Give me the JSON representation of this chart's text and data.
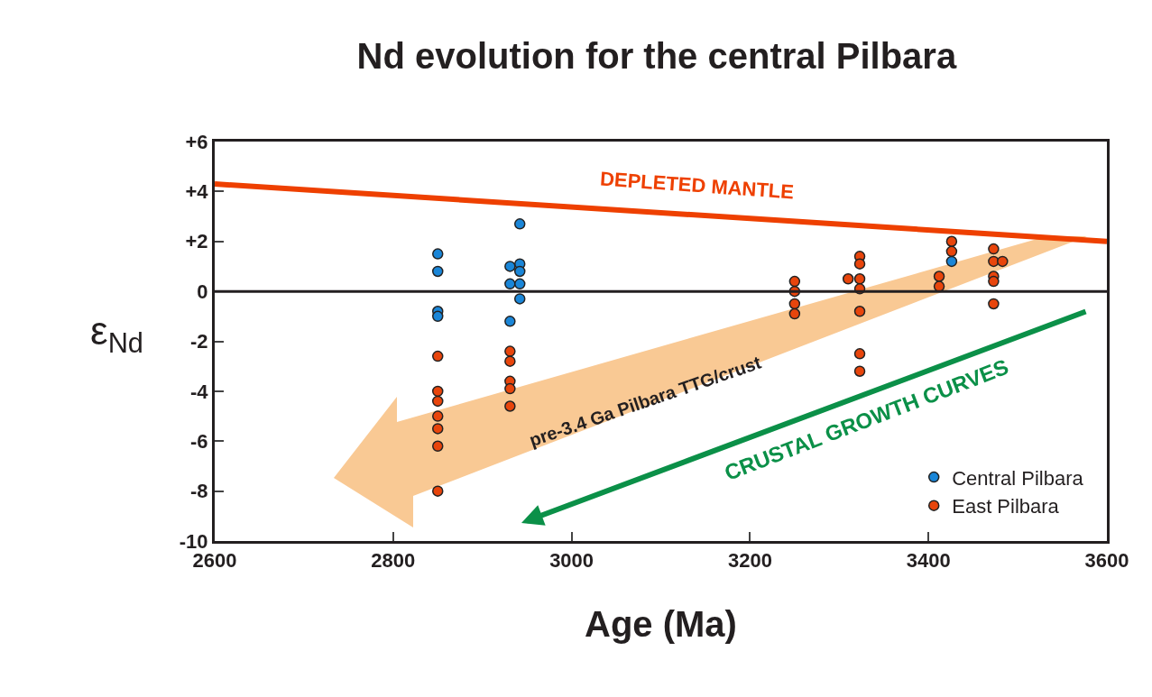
{
  "chart_data": {
    "type": "scatter",
    "title": "Nd evolution for the central Pilbara",
    "xlabel": "Age (Ma)",
    "ylabel": "ε$_{Nd}$",
    "xlim": [
      2600,
      3600
    ],
    "xticks": [
      2600,
      2800,
      3000,
      3200,
      3400,
      3600
    ],
    "ylim": [
      -10,
      6
    ],
    "yticks": [
      {
        "value": 6,
        "label": "+6"
      },
      {
        "value": 4,
        "label": "+4"
      },
      {
        "value": 2,
        "label": "+2"
      },
      0,
      -2,
      -4,
      -6,
      -8,
      -10
    ],
    "grid": false,
    "legend": "bottom right",
    "marker": "circle",
    "ref_lines": [
      {
        "axis": "y",
        "value": 0,
        "color": "#231f20"
      }
    ],
    "annotations": [
      "pre-3.4 Ga Pilbara TTG/crust",
      "CRUSTAL GROWTH CURVES"
    ],
    "series": [
      {
        "name": "Central Pilbara",
        "color": "#1a86d8",
        "x": [
          2850,
          2850,
          2850,
          2850,
          2931,
          2931,
          2931,
          2942,
          2942,
          2942,
          2942,
          2942,
          3426
        ],
        "values": [
          1.5,
          0.8,
          -0.8,
          -1.0,
          1.0,
          0.3,
          -1.2,
          2.7,
          1.1,
          0.8,
          0.3,
          -0.3,
          1.2
        ]
      },
      {
        "name": "East Pilbara",
        "color": "#e8450c",
        "x": [
          2850,
          2850,
          2850,
          2850,
          2850,
          2850,
          2850,
          2931,
          2931,
          2931,
          2931,
          2931,
          3250,
          3250,
          3250,
          3250,
          3310,
          3323,
          3323,
          3323,
          3323,
          3323,
          3323,
          3323,
          3412,
          3412,
          3426,
          3426,
          3473,
          3473,
          3473,
          3473,
          3473,
          3483
        ],
        "values": [
          -2.6,
          -4.0,
          -4.4,
          -5.0,
          -5.5,
          -6.2,
          -8.0,
          -2.4,
          -2.8,
          -3.6,
          -3.9,
          -4.6,
          0.4,
          0.0,
          -0.5,
          -0.9,
          0.5,
          1.4,
          1.1,
          0.5,
          0.1,
          -0.8,
          -2.5,
          -3.2,
          0.6,
          0.2,
          2.0,
          1.6,
          1.7,
          1.2,
          0.6,
          0.4,
          -0.5,
          1.2
        ]
      },
      {
        "name": "DEPLETED MANTLE",
        "type": "line",
        "marker": "none",
        "color": "#ee4000",
        "x": [
          2600,
          3600
        ],
        "values": [
          4.3,
          2.0
        ]
      }
    ]
  }
}
